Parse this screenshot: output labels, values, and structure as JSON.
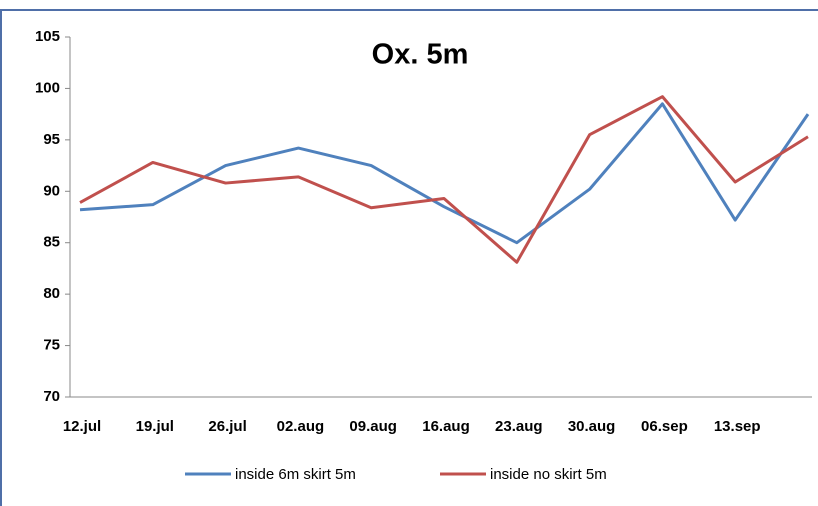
{
  "chart_data": {
    "type": "line",
    "title": "Ox. 5m",
    "categories": [
      "12.jul",
      "19.jul",
      "26.jul",
      "02.aug",
      "09.aug",
      "16.aug",
      "23.aug",
      "30.aug",
      "06.sep",
      "13.sep",
      null
    ],
    "series": [
      {
        "name": "inside 6m skirt 5m",
        "color": "#4f81bd",
        "values": [
          88.2,
          88.7,
          92.5,
          94.2,
          92.5,
          88.5,
          85.0,
          90.2,
          98.5,
          87.2,
          97.5
        ]
      },
      {
        "name": "inside no skirt 5m",
        "color": "#c0504d",
        "values": [
          88.9,
          92.8,
          90.8,
          91.4,
          88.4,
          89.3,
          83.1,
          95.5,
          99.2,
          90.9,
          95.3
        ]
      }
    ],
    "ylim": [
      70,
      105
    ],
    "yticks": [
      70,
      75,
      80,
      85,
      90,
      95,
      100,
      105
    ],
    "grid": false,
    "legend": "bottom"
  }
}
